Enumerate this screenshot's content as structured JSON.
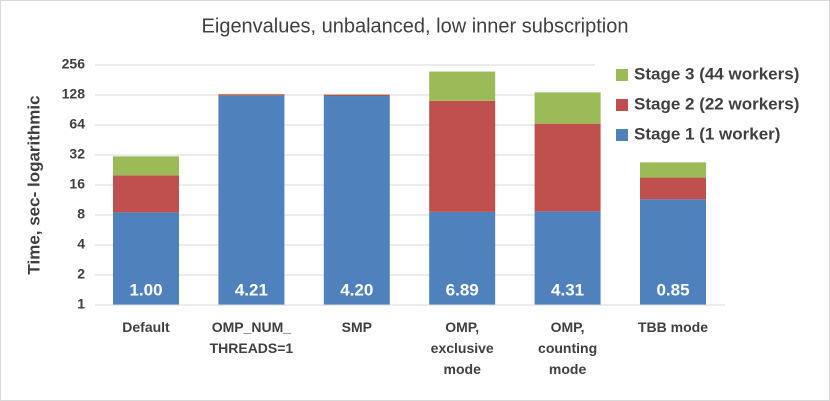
{
  "chart_data": {
    "type": "bar",
    "stacked": true,
    "log_scale": true,
    "title": "Eigenvalues, unbalanced, low inner subscription",
    "y_label": "Time, sec- logarithmic",
    "categories": [
      [
        "Default"
      ],
      [
        "OMP_NUM_",
        "THREADS=1"
      ],
      [
        "SMP"
      ],
      [
        "OMP,",
        "exclusive",
        "mode"
      ],
      [
        "OMP,",
        "counting",
        "mode"
      ],
      [
        "TBB mode"
      ]
    ],
    "series": [
      {
        "name": "Stage 1 (1 worker)",
        "color": "#4f81bd",
        "values": [
          8.5,
          126,
          125,
          8.6,
          8.7,
          11.5
        ]
      },
      {
        "name": "Stage 2 (22 workers)",
        "color": "#c0504d",
        "values": [
          11.5,
          4,
          4,
          103.4,
          57.3,
          7.5
        ]
      },
      {
        "name": "Stage 3 (44 workers)",
        "color": "#9bbb59",
        "values": [
          11,
          1,
          1,
          108,
          70,
          8
        ]
      }
    ],
    "bar_labels": [
      "1.00",
      "4.21",
      "4.20",
      "6.89",
      "4.31",
      "0.85"
    ],
    "ylim": [
      1,
      256
    ],
    "yticks": [
      1,
      2,
      4,
      8,
      16,
      32,
      64,
      128,
      256
    ],
    "grid": true,
    "legend": "right"
  }
}
